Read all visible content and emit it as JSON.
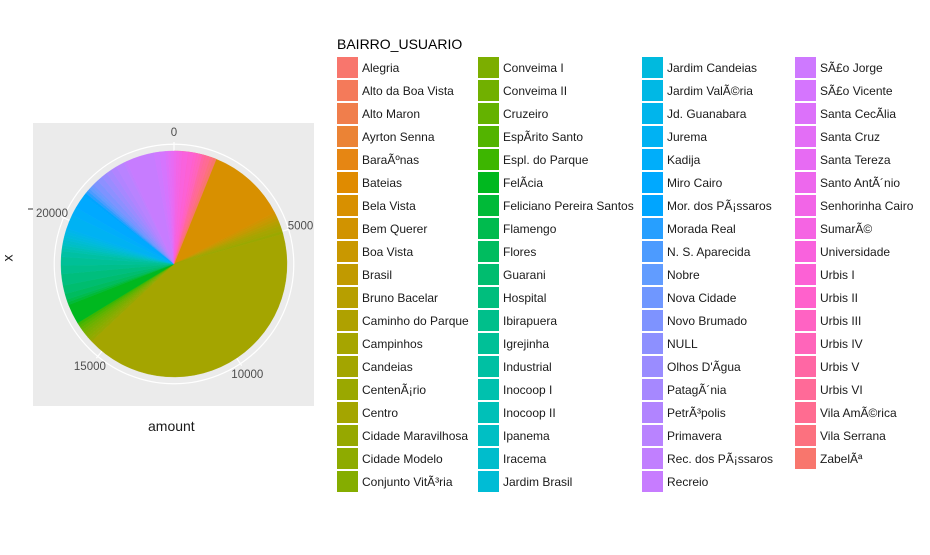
{
  "chart_data": {
    "type": "pie",
    "xlabel": "amount",
    "ylabel": "x",
    "theta_ticks": [
      0,
      5000,
      10000,
      15000,
      20000
    ],
    "theta_max": 24600,
    "y_tick_left": "20000",
    "legend_title": "BAIRRO_USUARIO",
    "legend_position": "right",
    "grid": true,
    "slices": [
      {
        "name": "Alegria",
        "value": 100,
        "color": "#F8766D"
      },
      {
        "name": "Alto da Boa Vista",
        "value": 100,
        "color": "#F47A5A"
      },
      {
        "name": "Alto Maron",
        "value": 100,
        "color": "#F07E4C"
      },
      {
        "name": "Ayrton Senna",
        "value": 400,
        "color": "#EB8335"
      },
      {
        "name": "BaraÃºnas",
        "value": 700,
        "color": "#E68613"
      },
      {
        "name": "Bateias",
        "value": 100,
        "color": "#E08B00"
      },
      {
        "name": "Bela Vista",
        "value": 2800,
        "color": "#D89000"
      },
      {
        "name": "Bem Querer",
        "value": 100,
        "color": "#D19300"
      },
      {
        "name": "Boa Vista",
        "value": 100,
        "color": "#C99800"
      },
      {
        "name": "Brasil",
        "value": 100,
        "color": "#C19A00"
      },
      {
        "name": "Bruno Bacelar",
        "value": 100,
        "color": "#B79F00"
      },
      {
        "name": "Caminho do Parque",
        "value": 100,
        "color": "#AFA100"
      },
      {
        "name": "Campinhos",
        "value": 100,
        "color": "#A6A500"
      },
      {
        "name": "Candeias",
        "value": 100,
        "color": "#A3A500"
      },
      {
        "name": "CentenÃ¡rio",
        "value": 100,
        "color": "#9AA800"
      },
      {
        "name": "Centro",
        "value": 10400,
        "color": "#A4A500"
      },
      {
        "name": "Cidade Maravilhosa",
        "value": 100,
        "color": "#96A800"
      },
      {
        "name": "Cidade Modelo",
        "value": 100,
        "color": "#8EAB00"
      },
      {
        "name": "Conjunto VitÃ³ria",
        "value": 100,
        "color": "#85AD00"
      },
      {
        "name": "Conveima I",
        "value": 100,
        "color": "#7CAE00"
      },
      {
        "name": "Conveima II",
        "value": 100,
        "color": "#71B000"
      },
      {
        "name": "Cruzeiro",
        "value": 100,
        "color": "#64B200"
      },
      {
        "name": "EspÃ­rito Santo",
        "value": 100,
        "color": "#53B400"
      },
      {
        "name": "Espl. do Parque",
        "value": 100,
        "color": "#3DB600"
      },
      {
        "name": "FelÃ­cia",
        "value": 700,
        "color": "#00B81F"
      },
      {
        "name": "Feliciano Pereira Santos",
        "value": 100,
        "color": "#00BA38"
      },
      {
        "name": "Flamengo",
        "value": 100,
        "color": "#00BB4E"
      },
      {
        "name": "Flores",
        "value": 200,
        "color": "#00BC5F"
      },
      {
        "name": "Guarani",
        "value": 300,
        "color": "#00BD6F"
      },
      {
        "name": "Hospital",
        "value": 400,
        "color": "#00BE7D"
      },
      {
        "name": "Ibirapuera",
        "value": 300,
        "color": "#00BF8B"
      },
      {
        "name": "Igrejinha",
        "value": 300,
        "color": "#00C097"
      },
      {
        "name": "Industrial",
        "value": 200,
        "color": "#00C0A3"
      },
      {
        "name": "Inocoop I",
        "value": 100,
        "color": "#00C1AE"
      },
      {
        "name": "Inocoop II",
        "value": 100,
        "color": "#00C0B8"
      },
      {
        "name": "Ipanema",
        "value": 100,
        "color": "#00BFC4"
      },
      {
        "name": "Iracema",
        "value": 100,
        "color": "#00BDCC"
      },
      {
        "name": "Jardim Brasil",
        "value": 100,
        "color": "#00BCD5"
      },
      {
        "name": "Jardim Candeias",
        "value": 100,
        "color": "#00BADE"
      },
      {
        "name": "Jardim ValÃ©ria",
        "value": 100,
        "color": "#00B8E5"
      },
      {
        "name": "Jd. Guanabara",
        "value": 100,
        "color": "#00B5EC"
      },
      {
        "name": "Jurema",
        "value": 500,
        "color": "#00B2F3"
      },
      {
        "name": "Kadija",
        "value": 300,
        "color": "#00AEFA"
      },
      {
        "name": "Miro Cairo",
        "value": 500,
        "color": "#00A9FF"
      },
      {
        "name": "Mor. dos PÃ¡ssaros",
        "value": 100,
        "color": "#00A5FF"
      },
      {
        "name": "Morada Real",
        "value": 100,
        "color": "#279FFF"
      },
      {
        "name": "N. S. Aparecida",
        "value": 100,
        "color": "#4C9BFF"
      },
      {
        "name": "Nobre",
        "value": 100,
        "color": "#619CFF"
      },
      {
        "name": "Nova Cidade",
        "value": 100,
        "color": "#6F97FF"
      },
      {
        "name": "Novo Brumado",
        "value": 200,
        "color": "#7E93FF"
      },
      {
        "name": "NULL",
        "value": 200,
        "color": "#8D90FF"
      },
      {
        "name": "Olhos D'Ãgua",
        "value": 200,
        "color": "#9A8CFF"
      },
      {
        "name": "PatagÃ´nia",
        "value": 200,
        "color": "#A688FF"
      },
      {
        "name": "PetrÃ³polis",
        "value": 200,
        "color": "#B184FF"
      },
      {
        "name": "Primavera",
        "value": 300,
        "color": "#B983FF"
      },
      {
        "name": "Rec. dos PÃ¡ssaros",
        "value": 100,
        "color": "#C17FFF"
      },
      {
        "name": "Recreio",
        "value": 1000,
        "color": "#C77CFF"
      },
      {
        "name": "SÃ£o Jorge",
        "value": 200,
        "color": "#CE79FF"
      },
      {
        "name": "SÃ£o Vicente",
        "value": 200,
        "color": "#D575FE"
      },
      {
        "name": "Santa CecÃ­lia",
        "value": 100,
        "color": "#DC71FA"
      },
      {
        "name": "Santa Cruz",
        "value": 100,
        "color": "#E36EF6"
      },
      {
        "name": "Santa Tereza",
        "value": 100,
        "color": "#E76BF3"
      },
      {
        "name": "Santo AntÃ´nio",
        "value": 100,
        "color": "#ED68ED"
      },
      {
        "name": "Senhorinha Cairo",
        "value": 100,
        "color": "#F265E7"
      },
      {
        "name": "SumarÃ©",
        "value": 100,
        "color": "#F564E3"
      },
      {
        "name": "Universidade",
        "value": 200,
        "color": "#F962DD"
      },
      {
        "name": "Urbis I",
        "value": 200,
        "color": "#FC61D5"
      },
      {
        "name": "Urbis II",
        "value": 100,
        "color": "#FF61CC"
      },
      {
        "name": "Urbis III",
        "value": 100,
        "color": "#FF63C3"
      },
      {
        "name": "Urbis IV",
        "value": 100,
        "color": "#FF65BA"
      },
      {
        "name": "Urbis V",
        "value": 100,
        "color": "#FF67A4"
      },
      {
        "name": "Urbis VI",
        "value": 100,
        "color": "#FF6A98"
      },
      {
        "name": "Vila AmÃ©rica",
        "value": 100,
        "color": "#FF6C91"
      },
      {
        "name": "Vila Serrana",
        "value": 100,
        "color": "#FC717F"
      },
      {
        "name": "ZabelÃª",
        "value": 100,
        "color": "#F8766D"
      }
    ]
  }
}
